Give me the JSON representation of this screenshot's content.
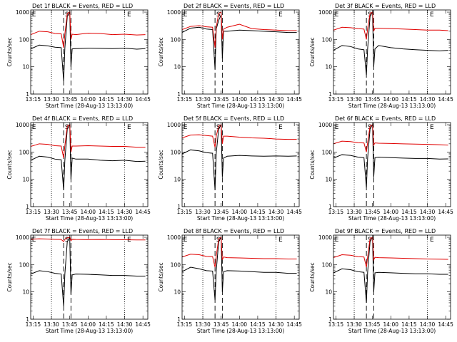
{
  "colors": {
    "events": "#000000",
    "lld": "#e00000",
    "axis": "#000000",
    "background": "#ffffff"
  },
  "shared": {
    "xlabel": "Start Time (28-Aug-13 13:13:00)",
    "ylabel": "Counts/sec",
    "x_tick_labels": [
      "13:15",
      "13:30",
      "13:45",
      "14:00",
      "14:15",
      "14:30",
      "14:45"
    ],
    "y_tick_labels": [
      "1",
      "10",
      "100",
      "1000"
    ],
    "markers": [
      "E",
      "S",
      "E"
    ],
    "y_scale": "log",
    "ylim": [
      1,
      1200
    ],
    "xlim_minutes_after_13_13": [
      0,
      96
    ]
  },
  "chart_data": [
    {
      "type": "line",
      "title": "Det 1f BLACK = Events, RED = LLD",
      "xlabel": "Start Time (28-Aug-13 13:13:00)",
      "ylabel": "Counts/sec",
      "y_scale": "log",
      "dotted_x": [
        "13:30",
        "14:30"
      ],
      "dashed_x": [
        "13:40",
        "13:46"
      ],
      "series": [
        {
          "name": "Events",
          "color": "#000000",
          "x": [
            "13:13",
            "13:20",
            "13:27",
            "13:33",
            "13:38",
            "13:40",
            "13:41",
            "13:43",
            "13:45",
            "13:46",
            "13:47",
            "13:50",
            "14:00",
            "14:10",
            "14:20",
            "14:30",
            "14:40",
            "14:47"
          ],
          "y": [
            45,
            62,
            58,
            52,
            50,
            3,
            48,
            700,
            1000,
            10,
            45,
            46,
            48,
            47,
            46,
            48,
            44,
            46
          ]
        },
        {
          "name": "LLD",
          "color": "#e00000",
          "x": [
            "13:13",
            "13:20",
            "13:27",
            "13:33",
            "13:38",
            "13:40",
            "13:41",
            "13:43",
            "13:45",
            "13:46",
            "13:47",
            "13:50",
            "14:00",
            "14:10",
            "14:20",
            "14:30",
            "14:40",
            "14:47"
          ],
          "y": [
            150,
            200,
            190,
            165,
            160,
            50,
            160,
            900,
            1000,
            100,
            155,
            150,
            170,
            165,
            150,
            155,
            145,
            150
          ]
        }
      ]
    },
    {
      "type": "line",
      "title": "Det 2f BLACK = Events, RED = LLD",
      "xlabel": "Start Time (28-Aug-13 13:13:00)",
      "ylabel": "Counts/sec",
      "y_scale": "log",
      "dotted_x": [
        "13:30",
        "14:30"
      ],
      "dashed_x": [
        "13:40",
        "13:46"
      ],
      "series": [
        {
          "name": "Events",
          "color": "#000000",
          "x": [
            "13:13",
            "13:20",
            "13:27",
            "13:33",
            "13:38",
            "13:40",
            "13:41",
            "13:43",
            "13:45",
            "13:46",
            "13:47",
            "13:50",
            "14:00",
            "14:10",
            "14:20",
            "14:30",
            "14:40",
            "14:47"
          ],
          "y": [
            180,
            260,
            280,
            240,
            230,
            8,
            240,
            500,
            800,
            20,
            200,
            200,
            220,
            210,
            200,
            190,
            180,
            180
          ]
        },
        {
          "name": "LLD",
          "color": "#e00000",
          "x": [
            "13:13",
            "13:20",
            "13:27",
            "13:33",
            "13:38",
            "13:40",
            "13:41",
            "13:43",
            "13:45",
            "13:46",
            "13:47",
            "13:50",
            "14:00",
            "14:10",
            "14:20",
            "14:30",
            "14:40",
            "14:47"
          ],
          "y": [
            230,
            300,
            320,
            290,
            280,
            50,
            280,
            900,
            1000,
            100,
            240,
            280,
            360,
            250,
            230,
            220,
            210,
            210
          ]
        }
      ]
    },
    {
      "type": "line",
      "title": "Det 3f BLACK = Events, RED = LLD",
      "xlabel": "Start Time (28-Aug-13 13:13:00)",
      "ylabel": "Counts/sec",
      "y_scale": "log",
      "dotted_x": [
        "13:30",
        "14:30"
      ],
      "dashed_x": [
        "13:40",
        "13:46"
      ],
      "series": [
        {
          "name": "Events",
          "color": "#000000",
          "x": [
            "13:13",
            "13:20",
            "13:27",
            "13:33",
            "13:38",
            "13:40",
            "13:41",
            "13:43",
            "13:45",
            "13:46",
            "13:47",
            "13:50",
            "14:00",
            "14:10",
            "14:20",
            "14:30",
            "14:40",
            "14:47"
          ],
          "y": [
            40,
            60,
            55,
            45,
            42,
            5,
            45,
            700,
            1000,
            10,
            45,
            60,
            50,
            45,
            42,
            40,
            38,
            40
          ]
        },
        {
          "name": "LLD",
          "color": "#e00000",
          "x": [
            "13:13",
            "13:20",
            "13:27",
            "13:33",
            "13:38",
            "13:40",
            "13:41",
            "13:43",
            "13:45",
            "13:46",
            "13:47",
            "13:50",
            "14:00",
            "14:10",
            "14:20",
            "14:30",
            "14:40",
            "14:47"
          ],
          "y": [
            220,
            280,
            270,
            250,
            240,
            100,
            250,
            900,
            1000,
            200,
            260,
            260,
            250,
            240,
            230,
            220,
            220,
            210
          ]
        }
      ]
    },
    {
      "type": "line",
      "title": "Det 4f BLACK = Events, RED = LLD",
      "xlabel": "Start Time (28-Aug-13 13:13:00)",
      "ylabel": "Counts/sec",
      "y_scale": "log",
      "dotted_x": [
        "13:30",
        "14:30"
      ],
      "dashed_x": [
        "13:40",
        "13:46"
      ],
      "series": [
        {
          "name": "Events",
          "color": "#000000",
          "x": [
            "13:13",
            "13:20",
            "13:27",
            "13:33",
            "13:38",
            "13:40",
            "13:41",
            "13:43",
            "13:45",
            "13:46",
            "13:47",
            "13:50",
            "14:00",
            "14:10",
            "14:20",
            "14:30",
            "14:40",
            "14:47"
          ],
          "y": [
            50,
            70,
            65,
            55,
            52,
            4,
            50,
            700,
            1000,
            10,
            60,
            55,
            55,
            50,
            48,
            50,
            45,
            46
          ]
        },
        {
          "name": "LLD",
          "color": "#e00000",
          "x": [
            "13:13",
            "13:20",
            "13:27",
            "13:33",
            "13:38",
            "13:40",
            "13:41",
            "13:43",
            "13:45",
            "13:46",
            "13:47",
            "13:50",
            "14:00",
            "14:10",
            "14:20",
            "14:30",
            "14:40",
            "14:47"
          ],
          "y": [
            160,
            200,
            190,
            170,
            165,
            60,
            170,
            900,
            1000,
            100,
            165,
            165,
            170,
            165,
            160,
            160,
            150,
            150
          ]
        }
      ]
    },
    {
      "type": "line",
      "title": "Det 5f BLACK = Events, RED = LLD",
      "xlabel": "Start Time (28-Aug-13 13:13:00)",
      "ylabel": "Counts/sec",
      "y_scale": "log",
      "dotted_x": [
        "13:30",
        "14:30"
      ],
      "dashed_x": [
        "13:40",
        "13:46"
      ],
      "series": [
        {
          "name": "Events",
          "color": "#000000",
          "x": [
            "13:13",
            "13:20",
            "13:27",
            "13:33",
            "13:38",
            "13:40",
            "13:41",
            "13:43",
            "13:45",
            "13:46",
            "13:47",
            "13:50",
            "14:00",
            "14:10",
            "14:20",
            "14:30",
            "14:40",
            "14:47"
          ],
          "y": [
            85,
            120,
            110,
            95,
            90,
            4,
            90,
            700,
            1000,
            12,
            60,
            70,
            75,
            72,
            70,
            72,
            70,
            72
          ]
        },
        {
          "name": "LLD",
          "color": "#e00000",
          "x": [
            "13:13",
            "13:20",
            "13:27",
            "13:33",
            "13:38",
            "13:40",
            "13:41",
            "13:43",
            "13:45",
            "13:46",
            "13:47",
            "13:50",
            "14:00",
            "14:10",
            "14:20",
            "14:30",
            "14:40",
            "14:47"
          ],
          "y": [
            330,
            420,
            430,
            400,
            380,
            150,
            380,
            900,
            1000,
            200,
            380,
            380,
            350,
            330,
            320,
            300,
            290,
            290
          ]
        }
      ]
    },
    {
      "type": "line",
      "title": "Det 6f BLACK = Events, RED = LLD",
      "xlabel": "Start Time (28-Aug-13 13:13:00)",
      "ylabel": "Counts/sec",
      "y_scale": "log",
      "dotted_x": [
        "13:30",
        "14:30"
      ],
      "dashed_x": [
        "13:40",
        "13:46"
      ],
      "series": [
        {
          "name": "Events",
          "color": "#000000",
          "x": [
            "13:13",
            "13:20",
            "13:27",
            "13:33",
            "13:38",
            "13:40",
            "13:41",
            "13:43",
            "13:45",
            "13:46",
            "13:47",
            "13:50",
            "14:00",
            "14:10",
            "14:20",
            "14:30",
            "14:40",
            "14:47"
          ],
          "y": [
            60,
            80,
            75,
            65,
            62,
            5,
            60,
            700,
            1000,
            12,
            62,
            65,
            62,
            60,
            58,
            58,
            55,
            56
          ]
        },
        {
          "name": "LLD",
          "color": "#e00000",
          "x": [
            "13:13",
            "13:20",
            "13:27",
            "13:33",
            "13:38",
            "13:40",
            "13:41",
            "13:43",
            "13:45",
            "13:46",
            "13:47",
            "13:50",
            "14:00",
            "14:10",
            "14:20",
            "14:30",
            "14:40",
            "14:47"
          ],
          "y": [
            200,
            250,
            240,
            220,
            215,
            100,
            220,
            900,
            1000,
            180,
            215,
            210,
            205,
            200,
            195,
            190,
            185,
            180
          ]
        }
      ]
    },
    {
      "type": "line",
      "title": "Det 7f BLACK = Events, RED = LLD",
      "xlabel": "Start Time (28-Aug-13 13:13:00)",
      "ylabel": "Counts/sec",
      "y_scale": "log",
      "dotted_x": [
        "13:30",
        "14:30"
      ],
      "dashed_x": [
        "13:40",
        "13:46"
      ],
      "series": [
        {
          "name": "Events",
          "color": "#000000",
          "x": [
            "13:13",
            "13:20",
            "13:27",
            "13:33",
            "13:38",
            "13:40",
            "13:41",
            "13:43",
            "13:45",
            "13:46",
            "13:47",
            "13:50",
            "14:00",
            "14:10",
            "14:20",
            "14:30",
            "14:40",
            "14:47"
          ],
          "y": [
            45,
            60,
            55,
            48,
            45,
            3,
            45,
            700,
            1000,
            8,
            42,
            45,
            44,
            42,
            40,
            40,
            38,
            38
          ]
        },
        {
          "name": "LLD",
          "color": "#e00000",
          "x": [
            "13:13",
            "13:20",
            "13:27",
            "13:33",
            "13:38",
            "13:40",
            "13:41",
            "13:43",
            "13:45",
            "13:46",
            "13:47",
            "13:50",
            "14:00",
            "14:10",
            "14:20",
            "14:30",
            "14:40",
            "14:47"
          ],
          "y": [
            850,
            880,
            860,
            840,
            830,
            700,
            840,
            950,
            1000,
            750,
            840,
            830,
            820,
            830,
            820,
            810,
            800,
            800
          ]
        }
      ]
    },
    {
      "type": "line",
      "title": "Det 8f BLACK = Events, RED = LLD",
      "xlabel": "Start Time (28-Aug-13 13:13:00)",
      "ylabel": "Counts/sec",
      "y_scale": "log",
      "dotted_x": [
        "13:30",
        "14:30"
      ],
      "dashed_x": [
        "13:40",
        "13:46"
      ],
      "series": [
        {
          "name": "Events",
          "color": "#000000",
          "x": [
            "13:13",
            "13:20",
            "13:27",
            "13:33",
            "13:38",
            "13:40",
            "13:41",
            "13:43",
            "13:45",
            "13:46",
            "13:47",
            "13:50",
            "14:00",
            "14:10",
            "14:20",
            "14:30",
            "14:40",
            "14:47"
          ],
          "y": [
            55,
            80,
            70,
            60,
            58,
            5,
            58,
            700,
            1000,
            10,
            55,
            60,
            58,
            55,
            52,
            52,
            48,
            48
          ]
        },
        {
          "name": "LLD",
          "color": "#e00000",
          "x": [
            "13:13",
            "13:20",
            "13:27",
            "13:33",
            "13:38",
            "13:40",
            "13:41",
            "13:43",
            "13:45",
            "13:46",
            "13:47",
            "13:50",
            "14:00",
            "14:10",
            "14:20",
            "14:30",
            "14:40",
            "14:47"
          ],
          "y": [
            190,
            240,
            230,
            200,
            195,
            80,
            200,
            900,
            1000,
            150,
            190,
            180,
            175,
            170,
            165,
            165,
            160,
            160
          ]
        }
      ]
    },
    {
      "type": "line",
      "title": "Det 9f BLACK = Events, RED = LLD",
      "xlabel": "Start Time (28-Aug-13 13:13:00)",
      "ylabel": "Counts/sec",
      "y_scale": "log",
      "dotted_x": [
        "13:30",
        "14:30"
      ],
      "dashed_x": [
        "13:40",
        "13:46"
      ],
      "series": [
        {
          "name": "Events",
          "color": "#000000",
          "x": [
            "13:13",
            "13:20",
            "13:27",
            "13:33",
            "13:38",
            "13:40",
            "13:41",
            "13:43",
            "13:45",
            "13:46",
            "13:47",
            "13:50",
            "14:00",
            "14:10",
            "14:20",
            "14:30",
            "14:40",
            "14:47"
          ],
          "y": [
            50,
            70,
            65,
            55,
            52,
            4,
            52,
            700,
            1000,
            10,
            50,
            52,
            50,
            48,
            46,
            46,
            44,
            44
          ]
        },
        {
          "name": "LLD",
          "color": "#e00000",
          "x": [
            "13:13",
            "13:20",
            "13:27",
            "13:33",
            "13:38",
            "13:40",
            "13:41",
            "13:43",
            "13:45",
            "13:46",
            "13:47",
            "13:50",
            "14:00",
            "14:10",
            "14:20",
            "14:30",
            "14:40",
            "14:47"
          ],
          "y": [
            180,
            230,
            220,
            195,
            190,
            80,
            190,
            900,
            1000,
            150,
            185,
            180,
            175,
            170,
            165,
            160,
            158,
            155
          ]
        }
      ]
    }
  ]
}
